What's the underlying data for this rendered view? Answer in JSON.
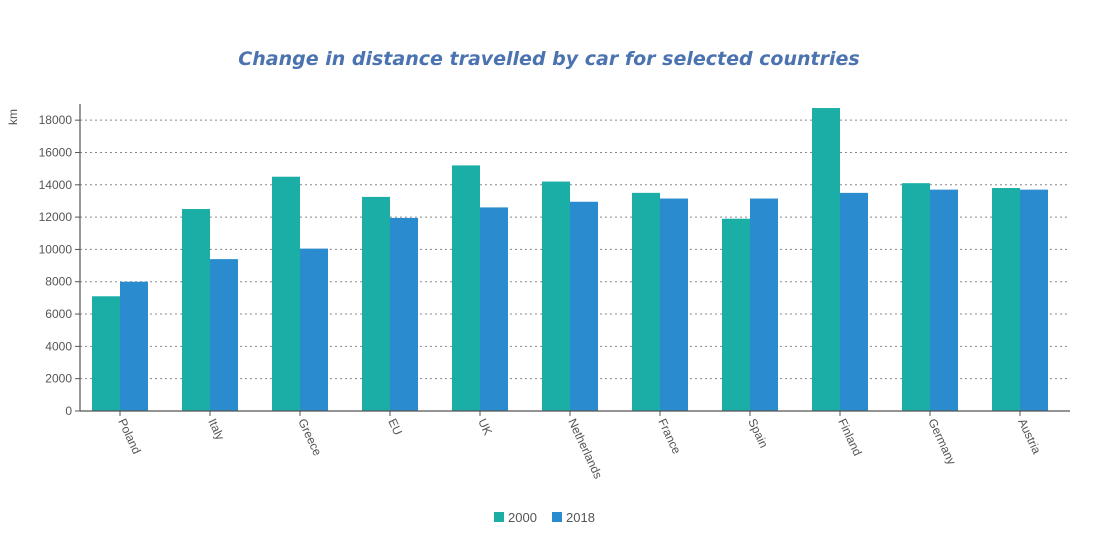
{
  "chart_data": {
    "type": "bar",
    "title": "Change in distance travelled by car for selected countries",
    "ylabel": "km",
    "xlabel": "",
    "ylim": [
      0,
      19000
    ],
    "yticks": [
      0,
      2000,
      4000,
      6000,
      8000,
      10000,
      12000,
      14000,
      16000,
      18000
    ],
    "grid": true,
    "legend_position": "bottom-center",
    "categories": [
      "Poland",
      "Italy",
      "Greece",
      "EU",
      "UK",
      "Netherlands",
      "France",
      "Spain",
      "Finland",
      "Germany",
      "Austria"
    ],
    "series": [
      {
        "name": "2000",
        "color": "#1aaea6",
        "values": [
          7100,
          12500,
          14500,
          13250,
          15200,
          14200,
          13500,
          11900,
          18750,
          14100,
          13800
        ]
      },
      {
        "name": "2018",
        "color": "#2a8ccf",
        "values": [
          8000,
          9400,
          10050,
          11950,
          12600,
          12950,
          13150,
          13150,
          13500,
          13700,
          13700
        ]
      }
    ]
  }
}
